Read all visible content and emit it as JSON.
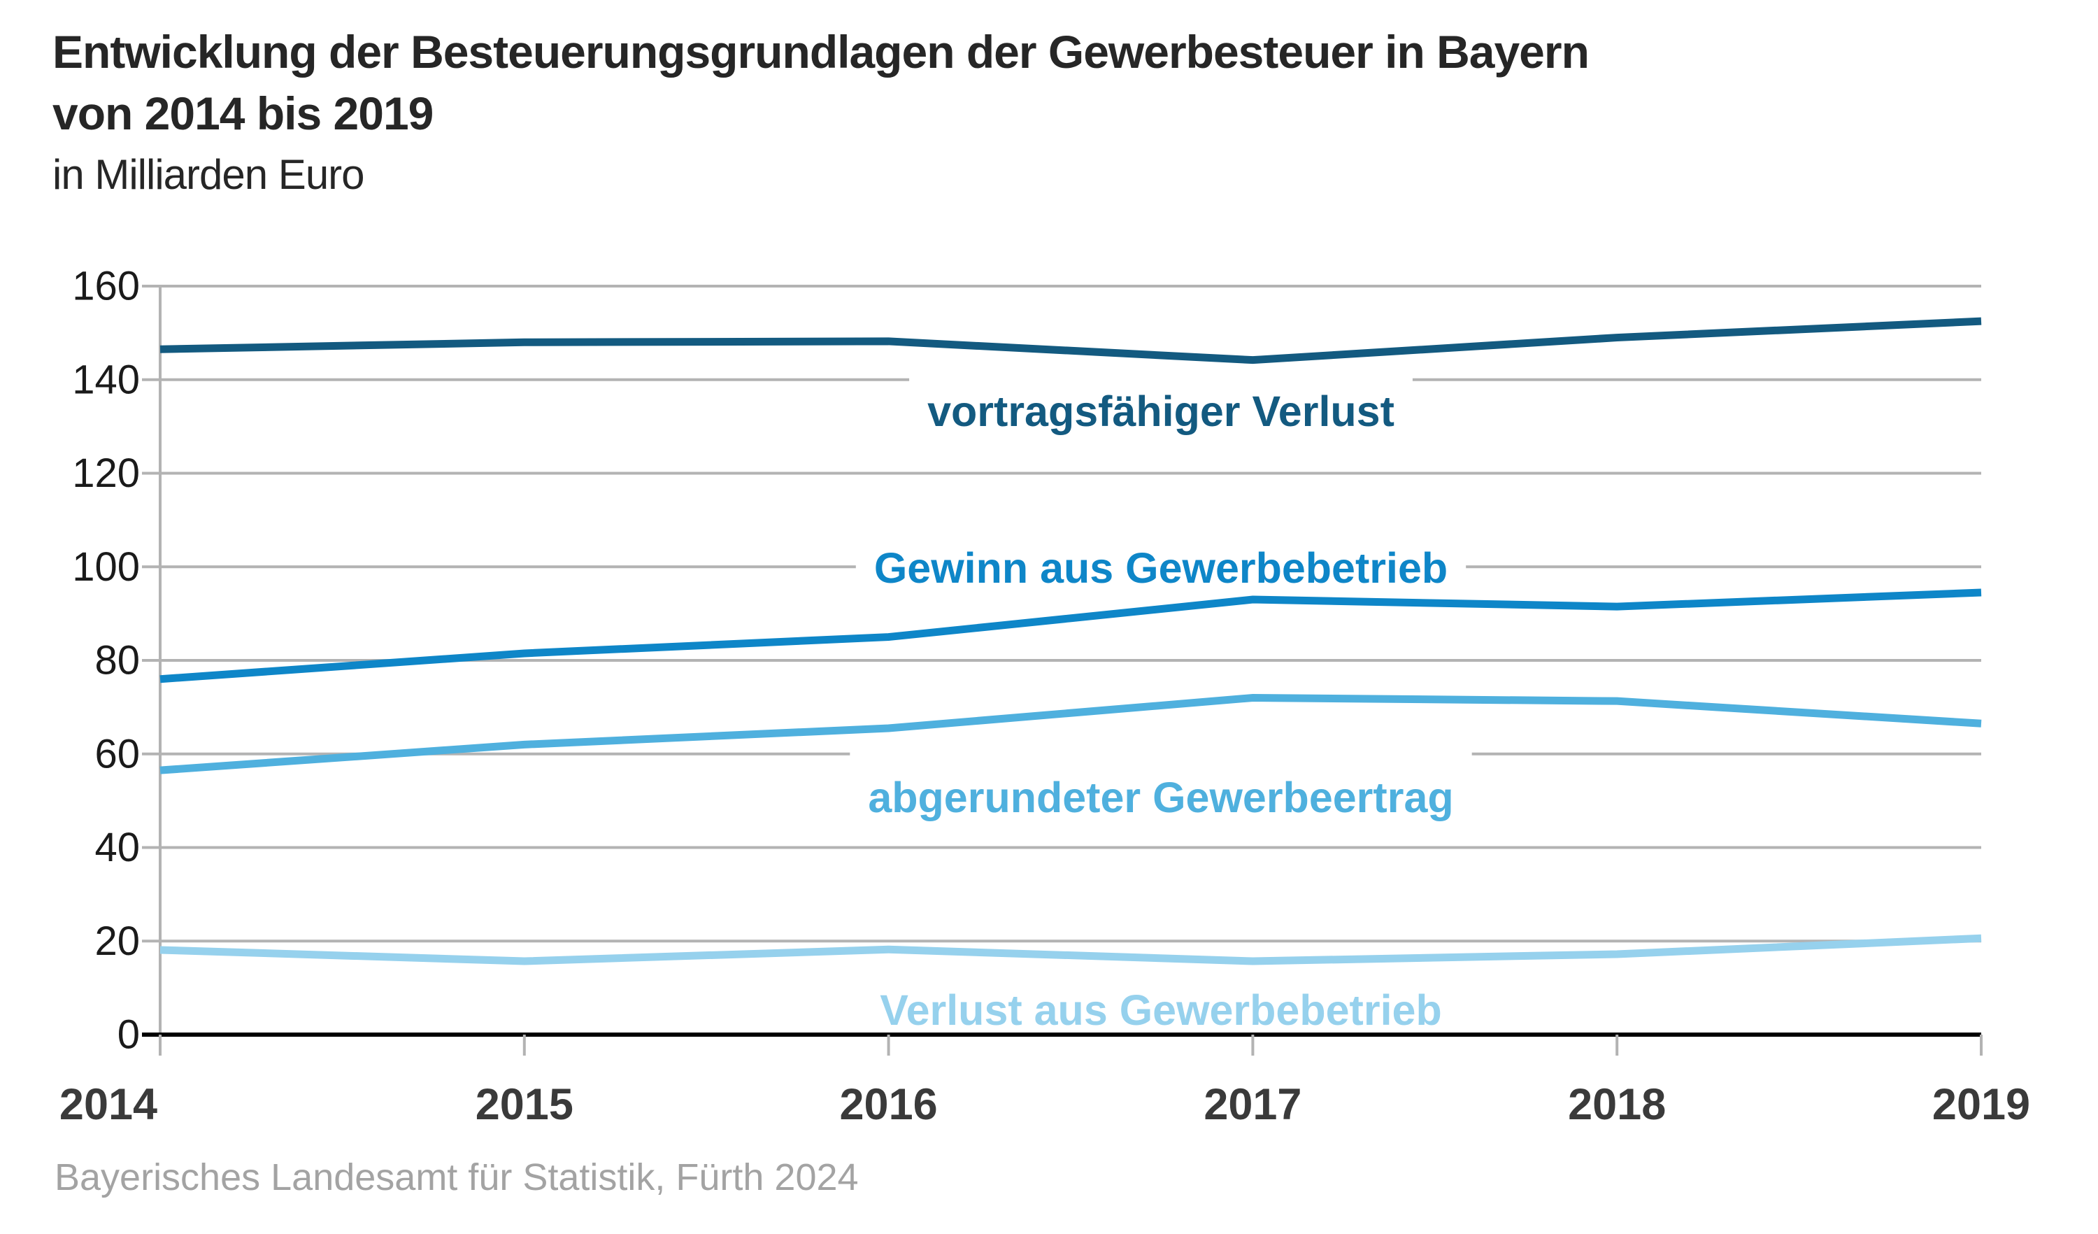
{
  "title": {
    "line1": "Entwicklung der Besteuerungsgrundlagen der Gewerbesteuer in Bayern",
    "line2": "von 2014 bis 2019",
    "subtitle": "in Milliarden Euro"
  },
  "source": "Bayerisches Landesamt für Statistik, Fürth 2024",
  "colors": {
    "grid": "#b3b3b3",
    "axis": "#000000",
    "y_tick_label": "#1a1a1a",
    "x_tick_label": "#3a3a3a",
    "title_text": "#262626",
    "source_text": "#a3a3a3"
  },
  "chart_data": {
    "type": "line",
    "title": "Entwicklung der Besteuerungsgrundlagen der Gewerbesteuer in Bayern von 2014 bis 2019",
    "subtitle": "in Milliarden Euro",
    "xlabel": "",
    "ylabel": "in Milliarden Euro",
    "categories": [
      "2014",
      "2015",
      "2016",
      "2017",
      "2018",
      "2019"
    ],
    "ylim": [
      0,
      160
    ],
    "ytick_step": 20,
    "yticks": [
      "160",
      "140",
      "120",
      "100",
      "80",
      "60",
      "40",
      "20",
      "0"
    ],
    "grid": true,
    "legend_position": "inline-labels-on-chart",
    "series": [
      {
        "name": "vortragsfähiger Verlust",
        "color": "#135a80",
        "values": [
          146.5,
          148.0,
          148.2,
          144.2,
          149.0,
          152.5
        ]
      },
      {
        "name": "Gewinn aus Gewerbebetrieb",
        "color": "#0e86c8",
        "values": [
          76.0,
          81.5,
          85.0,
          93.0,
          91.5,
          94.5
        ]
      },
      {
        "name": "abgerundeter Gewerbeertrag",
        "color": "#4fb0de",
        "values": [
          56.5,
          62.0,
          65.5,
          72.0,
          71.3,
          66.5
        ]
      },
      {
        "name": "Verlust aus Gewerbebetrieb",
        "color": "#96d1ed",
        "values": [
          18.1,
          15.7,
          18.2,
          15.7,
          17.2,
          20.6
        ]
      }
    ]
  }
}
